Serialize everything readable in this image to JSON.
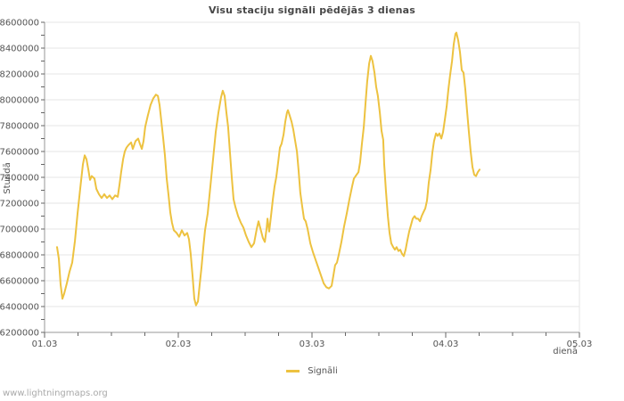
{
  "page": {
    "watermark": "www.lightningmaps.org"
  },
  "colors": {
    "background": "#ffffff",
    "line": "#EDC240",
    "grid": "#e6e6e6",
    "axis": "#979797",
    "tick": "#666666",
    "text": "#545454",
    "title": "#474747",
    "watermark": "#a9a9a9"
  },
  "chart_data": {
    "type": "line",
    "title": "Visu staciju signāli pēdējās 3 dienas",
    "xlabel": "dienā",
    "ylabel": "Stundā",
    "grid": "horizontal-only",
    "xlim": [
      0,
      4
    ],
    "ylim": [
      6200000,
      8600000
    ],
    "x_unit": "days since 01.03 00:00",
    "x_tick_labels": [
      "01.03",
      "02.03",
      "03.03",
      "04.03",
      "05.03"
    ],
    "x_minor_step": 0.25,
    "y_major_step": 200000,
    "y_minor_step": 100000,
    "y_tick_labels": [
      "6200000",
      "6400000",
      "6600000",
      "6800000",
      "7000000",
      "7200000",
      "7400000",
      "7600000",
      "7800000",
      "8000000",
      "8200000",
      "8400000",
      "8600000"
    ],
    "legend": {
      "position": "bottom-center",
      "entries": [
        {
          "label": "Signāli",
          "color": "#EDC240"
        }
      ]
    },
    "series": [
      {
        "name": "Signāli",
        "color": "#EDC240",
        "points": [
          [
            0.093,
            6860000
          ],
          [
            0.107,
            6770000
          ],
          [
            0.12,
            6570000
          ],
          [
            0.133,
            6460000
          ],
          [
            0.147,
            6500000
          ],
          [
            0.167,
            6580000
          ],
          [
            0.187,
            6670000
          ],
          [
            0.207,
            6740000
          ],
          [
            0.227,
            6910000
          ],
          [
            0.247,
            7120000
          ],
          [
            0.267,
            7320000
          ],
          [
            0.287,
            7500000
          ],
          [
            0.3,
            7570000
          ],
          [
            0.313,
            7540000
          ],
          [
            0.327,
            7460000
          ],
          [
            0.34,
            7380000
          ],
          [
            0.353,
            7410000
          ],
          [
            0.373,
            7390000
          ],
          [
            0.387,
            7310000
          ],
          [
            0.407,
            7270000
          ],
          [
            0.427,
            7240000
          ],
          [
            0.447,
            7270000
          ],
          [
            0.467,
            7240000
          ],
          [
            0.487,
            7260000
          ],
          [
            0.507,
            7230000
          ],
          [
            0.527,
            7260000
          ],
          [
            0.547,
            7250000
          ],
          [
            0.56,
            7340000
          ],
          [
            0.573,
            7440000
          ],
          [
            0.587,
            7540000
          ],
          [
            0.6,
            7600000
          ],
          [
            0.613,
            7630000
          ],
          [
            0.627,
            7650000
          ],
          [
            0.647,
            7670000
          ],
          [
            0.66,
            7620000
          ],
          [
            0.68,
            7680000
          ],
          [
            0.7,
            7700000
          ],
          [
            0.713,
            7660000
          ],
          [
            0.727,
            7620000
          ],
          [
            0.74,
            7680000
          ],
          [
            0.753,
            7790000
          ],
          [
            0.773,
            7880000
          ],
          [
            0.793,
            7960000
          ],
          [
            0.813,
            8010000
          ],
          [
            0.833,
            8040000
          ],
          [
            0.847,
            8030000
          ],
          [
            0.86,
            7960000
          ],
          [
            0.873,
            7840000
          ],
          [
            0.887,
            7700000
          ],
          [
            0.9,
            7570000
          ],
          [
            0.913,
            7390000
          ],
          [
            0.927,
            7260000
          ],
          [
            0.94,
            7130000
          ],
          [
            0.953,
            7050000
          ],
          [
            0.967,
            6990000
          ],
          [
            0.987,
            6970000
          ],
          [
            1.007,
            6940000
          ],
          [
            1.027,
            6990000
          ],
          [
            1.047,
            6950000
          ],
          [
            1.067,
            6970000
          ],
          [
            1.08,
            6920000
          ],
          [
            1.093,
            6810000
          ],
          [
            1.107,
            6630000
          ],
          [
            1.12,
            6460000
          ],
          [
            1.133,
            6410000
          ],
          [
            1.147,
            6440000
          ],
          [
            1.16,
            6570000
          ],
          [
            1.173,
            6700000
          ],
          [
            1.187,
            6860000
          ],
          [
            1.2,
            6990000
          ],
          [
            1.22,
            7120000
          ],
          [
            1.24,
            7330000
          ],
          [
            1.26,
            7540000
          ],
          [
            1.28,
            7750000
          ],
          [
            1.3,
            7900000
          ],
          [
            1.32,
            8020000
          ],
          [
            1.333,
            8070000
          ],
          [
            1.347,
            8030000
          ],
          [
            1.36,
            7900000
          ],
          [
            1.373,
            7790000
          ],
          [
            1.387,
            7580000
          ],
          [
            1.4,
            7400000
          ],
          [
            1.413,
            7230000
          ],
          [
            1.427,
            7170000
          ],
          [
            1.447,
            7100000
          ],
          [
            1.467,
            7050000
          ],
          [
            1.487,
            7010000
          ],
          [
            1.507,
            6950000
          ],
          [
            1.527,
            6900000
          ],
          [
            1.547,
            6860000
          ],
          [
            1.567,
            6890000
          ],
          [
            1.587,
            7000000
          ],
          [
            1.6,
            7060000
          ],
          [
            1.613,
            7010000
          ],
          [
            1.633,
            6930000
          ],
          [
            1.647,
            6900000
          ],
          [
            1.66,
            7000000
          ],
          [
            1.667,
            7080000
          ],
          [
            1.68,
            6980000
          ],
          [
            1.693,
            7100000
          ],
          [
            1.707,
            7230000
          ],
          [
            1.72,
            7330000
          ],
          [
            1.733,
            7400000
          ],
          [
            1.747,
            7520000
          ],
          [
            1.76,
            7630000
          ],
          [
            1.773,
            7660000
          ],
          [
            1.787,
            7730000
          ],
          [
            1.8,
            7830000
          ],
          [
            1.813,
            7900000
          ],
          [
            1.82,
            7920000
          ],
          [
            1.833,
            7880000
          ],
          [
            1.847,
            7830000
          ],
          [
            1.86,
            7770000
          ],
          [
            1.873,
            7690000
          ],
          [
            1.887,
            7600000
          ],
          [
            1.9,
            7450000
          ],
          [
            1.913,
            7280000
          ],
          [
            1.927,
            7170000
          ],
          [
            1.94,
            7080000
          ],
          [
            1.953,
            7060000
          ],
          [
            1.967,
            7000000
          ],
          [
            1.987,
            6890000
          ],
          [
            2.007,
            6820000
          ],
          [
            2.027,
            6760000
          ],
          [
            2.047,
            6700000
          ],
          [
            2.067,
            6640000
          ],
          [
            2.087,
            6580000
          ],
          [
            2.107,
            6550000
          ],
          [
            2.127,
            6540000
          ],
          [
            2.147,
            6560000
          ],
          [
            2.16,
            6640000
          ],
          [
            2.173,
            6720000
          ],
          [
            2.187,
            6740000
          ],
          [
            2.2,
            6800000
          ],
          [
            2.22,
            6900000
          ],
          [
            2.24,
            7020000
          ],
          [
            2.26,
            7120000
          ],
          [
            2.28,
            7230000
          ],
          [
            2.3,
            7330000
          ],
          [
            2.313,
            7390000
          ],
          [
            2.333,
            7420000
          ],
          [
            2.347,
            7440000
          ],
          [
            2.36,
            7520000
          ],
          [
            2.373,
            7660000
          ],
          [
            2.387,
            7790000
          ],
          [
            2.4,
            7970000
          ],
          [
            2.413,
            8140000
          ],
          [
            2.427,
            8280000
          ],
          [
            2.44,
            8340000
          ],
          [
            2.453,
            8300000
          ],
          [
            2.467,
            8210000
          ],
          [
            2.48,
            8100000
          ],
          [
            2.493,
            8030000
          ],
          [
            2.507,
            7900000
          ],
          [
            2.52,
            7760000
          ],
          [
            2.533,
            7690000
          ],
          [
            2.54,
            7500000
          ],
          [
            2.553,
            7300000
          ],
          [
            2.567,
            7100000
          ],
          [
            2.58,
            6970000
          ],
          [
            2.593,
            6890000
          ],
          [
            2.607,
            6860000
          ],
          [
            2.62,
            6840000
          ],
          [
            2.633,
            6860000
          ],
          [
            2.647,
            6830000
          ],
          [
            2.66,
            6840000
          ],
          [
            2.673,
            6810000
          ],
          [
            2.687,
            6790000
          ],
          [
            2.7,
            6840000
          ],
          [
            2.713,
            6910000
          ],
          [
            2.727,
            6980000
          ],
          [
            2.74,
            7030000
          ],
          [
            2.753,
            7080000
          ],
          [
            2.767,
            7100000
          ],
          [
            2.78,
            7080000
          ],
          [
            2.793,
            7080000
          ],
          [
            2.807,
            7060000
          ],
          [
            2.82,
            7100000
          ],
          [
            2.833,
            7130000
          ],
          [
            2.847,
            7160000
          ],
          [
            2.86,
            7220000
          ],
          [
            2.873,
            7360000
          ],
          [
            2.887,
            7460000
          ],
          [
            2.9,
            7590000
          ],
          [
            2.913,
            7680000
          ],
          [
            2.927,
            7740000
          ],
          [
            2.94,
            7720000
          ],
          [
            2.953,
            7740000
          ],
          [
            2.967,
            7700000
          ],
          [
            2.98,
            7750000
          ],
          [
            2.993,
            7840000
          ],
          [
            3.007,
            7950000
          ],
          [
            3.02,
            8080000
          ],
          [
            3.033,
            8190000
          ],
          [
            3.047,
            8300000
          ],
          [
            3.06,
            8430000
          ],
          [
            3.073,
            8510000
          ],
          [
            3.08,
            8520000
          ],
          [
            3.093,
            8460000
          ],
          [
            3.107,
            8370000
          ],
          [
            3.12,
            8230000
          ],
          [
            3.133,
            8210000
          ],
          [
            3.147,
            8080000
          ],
          [
            3.16,
            7910000
          ],
          [
            3.173,
            7750000
          ],
          [
            3.187,
            7600000
          ],
          [
            3.2,
            7480000
          ],
          [
            3.213,
            7420000
          ],
          [
            3.227,
            7410000
          ],
          [
            3.24,
            7440000
          ],
          [
            3.253,
            7460000
          ]
        ]
      }
    ]
  }
}
